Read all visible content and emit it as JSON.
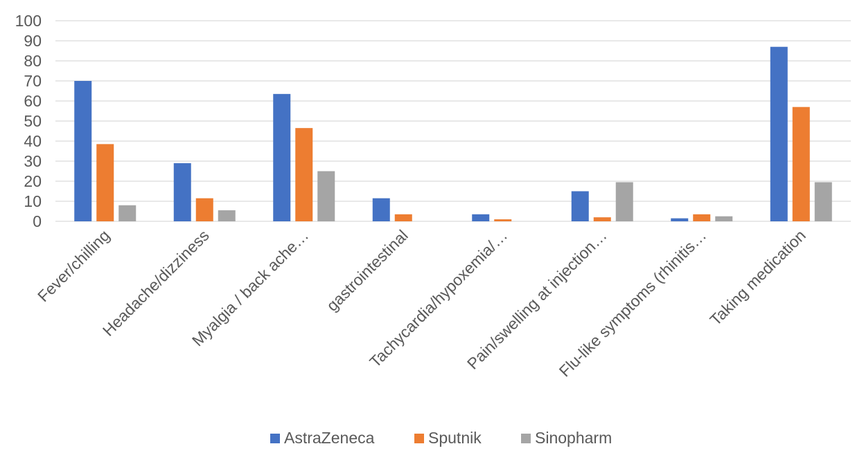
{
  "chart_data": {
    "type": "bar",
    "categories": [
      "Fever/chilling",
      "Headache/dizziness",
      "Myalgia / back ache…",
      "gastrointestinal",
      "Tachycardia/hypoxemia/…",
      "Pain/swelling at injection…",
      "Flu-like symptoms (rhinitis…",
      "Taking medication"
    ],
    "series": [
      {
        "name": "AstraZeneca",
        "color": "#4472c4",
        "values": [
          70,
          29,
          63.5,
          11.5,
          3.5,
          15,
          1.5,
          87
        ]
      },
      {
        "name": "Sputnik",
        "color": "#ed7d31",
        "values": [
          38.5,
          11.5,
          46.5,
          3.5,
          1,
          2,
          3.5,
          57
        ]
      },
      {
        "name": "Sinopharm",
        "color": "#a5a5a5",
        "values": [
          8,
          5.5,
          25,
          0,
          0,
          19.5,
          2.5,
          19.5
        ]
      }
    ],
    "yticks": [
      "0",
      "10",
      "20",
      "30",
      "40",
      "50",
      "60",
      "70",
      "80",
      "90",
      "100"
    ],
    "ylim": [
      0,
      100
    ],
    "title": "",
    "xlabel": "",
    "ylabel": "",
    "grid": true,
    "legend": "bottom"
  }
}
